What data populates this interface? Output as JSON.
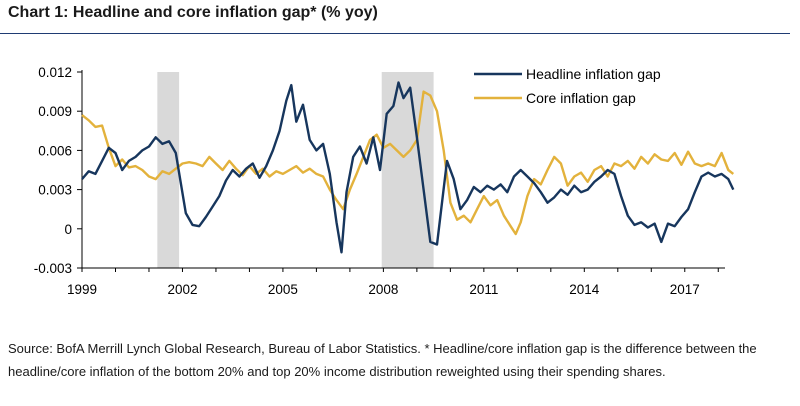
{
  "header": {
    "title": "Chart 1: Headline and core inflation gap* (% yoy)"
  },
  "footer": {
    "source": "Source: BofA Merrill Lynch Global Research, Bureau of Labor Statistics. * Headline/core inflation gap is the difference between the headline/core inflation of the bottom 20% and top 20% income distribution reweighted using their spending shares."
  },
  "chart_data": {
    "type": "line",
    "title": "Chart 1: Headline and core inflation gap* (% yoy)",
    "xlabel": "",
    "ylabel": "",
    "xlim": [
      1999,
      2018.5
    ],
    "ylim": [
      -0.003,
      0.012
    ],
    "xticks": [
      1999,
      2002,
      2005,
      2008,
      2011,
      2014,
      2017
    ],
    "yticks": [
      -0.003,
      0,
      0.003,
      0.006,
      0.009,
      0.012
    ],
    "ytick_labels": [
      "-0.003",
      "0",
      "0.003",
      "0.006",
      "0.009",
      "0.012"
    ],
    "grid": false,
    "legend_position": "top-right",
    "shaded_periods": [
      [
        2001.25,
        2001.9
      ],
      [
        2007.95,
        2009.5
      ]
    ],
    "colors": {
      "headline": "#17365d",
      "core": "#e3b23c",
      "shade": "#d9d9d9",
      "axis": "#000000"
    },
    "series": [
      {
        "name": "Headline inflation gap",
        "points": [
          [
            1999.0,
            0.0038
          ],
          [
            1999.2,
            0.0044
          ],
          [
            1999.4,
            0.0042
          ],
          [
            1999.6,
            0.0052
          ],
          [
            1999.8,
            0.0062
          ],
          [
            2000.0,
            0.0058
          ],
          [
            2000.2,
            0.0045
          ],
          [
            2000.4,
            0.0052
          ],
          [
            2000.6,
            0.0055
          ],
          [
            2000.8,
            0.006
          ],
          [
            2001.0,
            0.0063
          ],
          [
            2001.2,
            0.007
          ],
          [
            2001.4,
            0.0065
          ],
          [
            2001.6,
            0.0067
          ],
          [
            2001.8,
            0.0058
          ],
          [
            2001.95,
            0.0035
          ],
          [
            2002.1,
            0.0012
          ],
          [
            2002.3,
            0.0003
          ],
          [
            2002.5,
            0.0002
          ],
          [
            2002.7,
            0.0009
          ],
          [
            2002.9,
            0.0017
          ],
          [
            2003.1,
            0.0025
          ],
          [
            2003.3,
            0.0037
          ],
          [
            2003.5,
            0.0045
          ],
          [
            2003.7,
            0.004
          ],
          [
            2003.9,
            0.0046
          ],
          [
            2004.1,
            0.005
          ],
          [
            2004.3,
            0.0039
          ],
          [
            2004.5,
            0.0048
          ],
          [
            2004.7,
            0.006
          ],
          [
            2004.9,
            0.0075
          ],
          [
            2005.1,
            0.0098
          ],
          [
            2005.25,
            0.011
          ],
          [
            2005.4,
            0.0082
          ],
          [
            2005.6,
            0.0095
          ],
          [
            2005.8,
            0.0068
          ],
          [
            2006.0,
            0.006
          ],
          [
            2006.2,
            0.0065
          ],
          [
            2006.4,
            0.0042
          ],
          [
            2006.6,
            0.0005
          ],
          [
            2006.75,
            -0.0018
          ],
          [
            2006.9,
            0.0028
          ],
          [
            2007.1,
            0.0055
          ],
          [
            2007.3,
            0.0063
          ],
          [
            2007.5,
            0.005
          ],
          [
            2007.7,
            0.007
          ],
          [
            2007.9,
            0.0045
          ],
          [
            2008.1,
            0.0088
          ],
          [
            2008.3,
            0.0094
          ],
          [
            2008.45,
            0.0112
          ],
          [
            2008.6,
            0.01
          ],
          [
            2008.8,
            0.0108
          ],
          [
            2009.0,
            0.007
          ],
          [
            2009.2,
            0.003
          ],
          [
            2009.4,
            -0.001
          ],
          [
            2009.6,
            -0.0012
          ],
          [
            2009.75,
            0.002
          ],
          [
            2009.9,
            0.0052
          ],
          [
            2010.1,
            0.0038
          ],
          [
            2010.3,
            0.0015
          ],
          [
            2010.5,
            0.0022
          ],
          [
            2010.7,
            0.0032
          ],
          [
            2010.9,
            0.0028
          ],
          [
            2011.1,
            0.0033
          ],
          [
            2011.3,
            0.003
          ],
          [
            2011.5,
            0.0034
          ],
          [
            2011.7,
            0.0028
          ],
          [
            2011.9,
            0.004
          ],
          [
            2012.1,
            0.0045
          ],
          [
            2012.3,
            0.004
          ],
          [
            2012.5,
            0.0035
          ],
          [
            2012.7,
            0.0028
          ],
          [
            2012.9,
            0.002
          ],
          [
            2013.1,
            0.0024
          ],
          [
            2013.3,
            0.003
          ],
          [
            2013.5,
            0.0026
          ],
          [
            2013.7,
            0.0033
          ],
          [
            2013.9,
            0.0028
          ],
          [
            2014.1,
            0.003
          ],
          [
            2014.3,
            0.0036
          ],
          [
            2014.5,
            0.004
          ],
          [
            2014.7,
            0.0045
          ],
          [
            2014.9,
            0.0042
          ],
          [
            2015.1,
            0.0025
          ],
          [
            2015.3,
            0.001
          ],
          [
            2015.5,
            0.0003
          ],
          [
            2015.7,
            0.0005
          ],
          [
            2015.9,
            0.0001
          ],
          [
            2016.1,
            0.0004
          ],
          [
            2016.3,
            -0.001
          ],
          [
            2016.5,
            0.0004
          ],
          [
            2016.7,
            0.0002
          ],
          [
            2016.9,
            0.0009
          ],
          [
            2017.1,
            0.0015
          ],
          [
            2017.3,
            0.0028
          ],
          [
            2017.5,
            0.004
          ],
          [
            2017.7,
            0.0043
          ],
          [
            2017.9,
            0.004
          ],
          [
            2018.1,
            0.0042
          ],
          [
            2018.3,
            0.0038
          ],
          [
            2018.45,
            0.003
          ]
        ]
      },
      {
        "name": "Core inflation gap",
        "points": [
          [
            1999.0,
            0.0087
          ],
          [
            1999.2,
            0.0083
          ],
          [
            1999.4,
            0.0078
          ],
          [
            1999.6,
            0.0079
          ],
          [
            1999.8,
            0.0062
          ],
          [
            2000.0,
            0.0048
          ],
          [
            2000.2,
            0.0053
          ],
          [
            2000.4,
            0.0047
          ],
          [
            2000.6,
            0.0048
          ],
          [
            2000.8,
            0.0045
          ],
          [
            2001.0,
            0.004
          ],
          [
            2001.2,
            0.0038
          ],
          [
            2001.4,
            0.0044
          ],
          [
            2001.6,
            0.0042
          ],
          [
            2001.8,
            0.0046
          ],
          [
            2002.0,
            0.005
          ],
          [
            2002.2,
            0.0051
          ],
          [
            2002.4,
            0.005
          ],
          [
            2002.6,
            0.0048
          ],
          [
            2002.8,
            0.0055
          ],
          [
            2003.0,
            0.005
          ],
          [
            2003.2,
            0.0045
          ],
          [
            2003.4,
            0.0052
          ],
          [
            2003.6,
            0.0046
          ],
          [
            2003.8,
            0.0041
          ],
          [
            2004.0,
            0.0048
          ],
          [
            2004.2,
            0.0042
          ],
          [
            2004.4,
            0.0046
          ],
          [
            2004.6,
            0.004
          ],
          [
            2004.8,
            0.0044
          ],
          [
            2005.0,
            0.0042
          ],
          [
            2005.2,
            0.0045
          ],
          [
            2005.4,
            0.0048
          ],
          [
            2005.6,
            0.0043
          ],
          [
            2005.8,
            0.0046
          ],
          [
            2006.0,
            0.0042
          ],
          [
            2006.2,
            0.004
          ],
          [
            2006.4,
            0.003
          ],
          [
            2006.6,
            0.0022
          ],
          [
            2006.8,
            0.0015
          ],
          [
            2007.0,
            0.003
          ],
          [
            2007.2,
            0.0042
          ],
          [
            2007.4,
            0.0055
          ],
          [
            2007.6,
            0.0068
          ],
          [
            2007.8,
            0.0072
          ],
          [
            2008.0,
            0.0062
          ],
          [
            2008.2,
            0.0065
          ],
          [
            2008.4,
            0.006
          ],
          [
            2008.6,
            0.0055
          ],
          [
            2008.8,
            0.006
          ],
          [
            2009.0,
            0.0068
          ],
          [
            2009.2,
            0.0105
          ],
          [
            2009.4,
            0.0102
          ],
          [
            2009.6,
            0.009
          ],
          [
            2009.8,
            0.006
          ],
          [
            2010.0,
            0.002
          ],
          [
            2010.2,
            0.0007
          ],
          [
            2010.4,
            0.001
          ],
          [
            2010.6,
            0.0005
          ],
          [
            2010.8,
            0.0015
          ],
          [
            2011.0,
            0.0025
          ],
          [
            2011.2,
            0.0018
          ],
          [
            2011.4,
            0.0022
          ],
          [
            2011.6,
            0.001
          ],
          [
            2011.8,
            0.0002
          ],
          [
            2011.95,
            -0.0004
          ],
          [
            2012.1,
            0.0005
          ],
          [
            2012.3,
            0.0025
          ],
          [
            2012.5,
            0.0038
          ],
          [
            2012.7,
            0.0034
          ],
          [
            2012.9,
            0.0045
          ],
          [
            2013.1,
            0.0055
          ],
          [
            2013.3,
            0.005
          ],
          [
            2013.5,
            0.0033
          ],
          [
            2013.7,
            0.004
          ],
          [
            2013.9,
            0.0043
          ],
          [
            2014.1,
            0.0036
          ],
          [
            2014.3,
            0.0045
          ],
          [
            2014.5,
            0.0048
          ],
          [
            2014.7,
            0.004
          ],
          [
            2014.9,
            0.005
          ],
          [
            2015.1,
            0.0048
          ],
          [
            2015.3,
            0.0052
          ],
          [
            2015.5,
            0.0046
          ],
          [
            2015.7,
            0.0055
          ],
          [
            2015.9,
            0.005
          ],
          [
            2016.1,
            0.0057
          ],
          [
            2016.3,
            0.0053
          ],
          [
            2016.5,
            0.0052
          ],
          [
            2016.7,
            0.0058
          ],
          [
            2016.9,
            0.0049
          ],
          [
            2017.1,
            0.0059
          ],
          [
            2017.3,
            0.005
          ],
          [
            2017.5,
            0.0048
          ],
          [
            2017.7,
            0.005
          ],
          [
            2017.9,
            0.0048
          ],
          [
            2018.1,
            0.0058
          ],
          [
            2018.3,
            0.0045
          ],
          [
            2018.45,
            0.0042
          ]
        ]
      }
    ]
  }
}
